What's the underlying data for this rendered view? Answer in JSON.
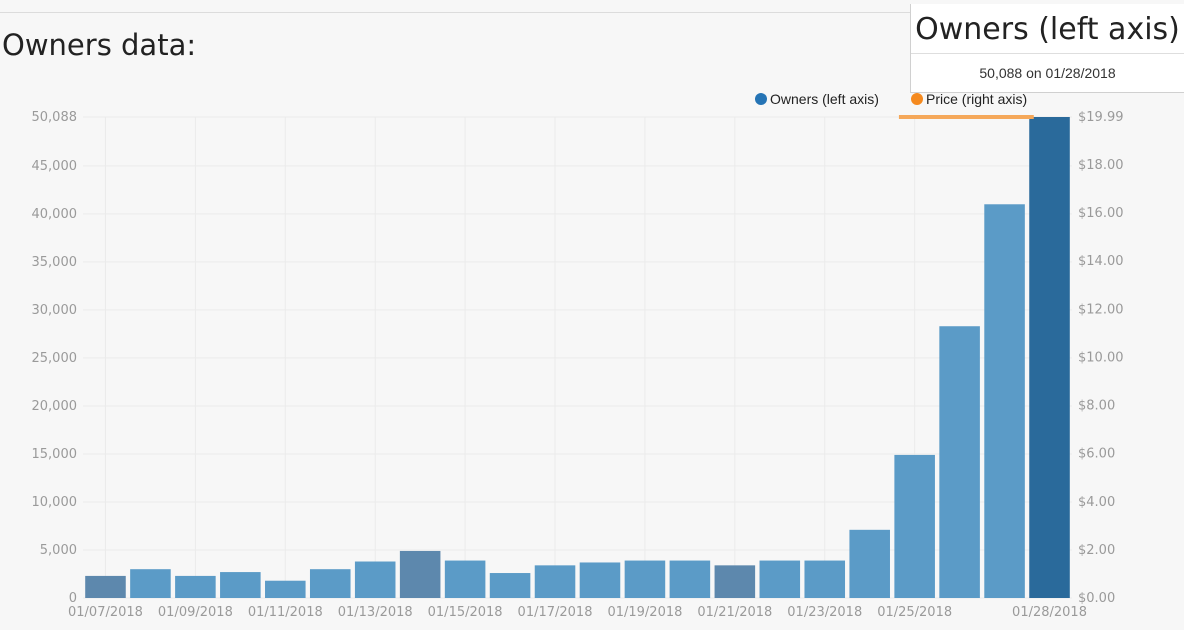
{
  "page": {
    "title": "Owners data:"
  },
  "tooltip": {
    "title": "Owners (left axis)",
    "value": "50,088 on 01/28/2018"
  },
  "colors": {
    "owners_bar": "#5b9bc7",
    "owners_bar_dark": "#5d88ad",
    "owners_bar_highlight": "#2a6a9b",
    "owners_legend": "#2574b5",
    "price_legend": "#f58a1f",
    "price_line": "#f5a85a",
    "grid": "#ebebeb"
  },
  "chart_data": {
    "type": "bar",
    "categories": [
      "01/07/2018",
      "01/08/2018",
      "01/09/2018",
      "01/10/2018",
      "01/11/2018",
      "01/12/2018",
      "01/13/2018",
      "01/14/2018",
      "01/15/2018",
      "01/16/2018",
      "01/17/2018",
      "01/18/2018",
      "01/19/2018",
      "01/20/2018",
      "01/21/2018",
      "01/22/2018",
      "01/23/2018",
      "01/24/2018",
      "01/25/2018",
      "01/26/2018",
      "01/27/2018",
      "01/28/2018"
    ],
    "series": [
      {
        "name": "Owners (left axis)",
        "axis": "left",
        "values": [
          2300,
          3000,
          2300,
          2700,
          1800,
          3000,
          3800,
          4900,
          3900,
          2600,
          3400,
          3700,
          3900,
          3900,
          3400,
          3900,
          3900,
          7100,
          14900,
          28300,
          41000,
          50088
        ],
        "darker_bars": [
          "01/07/2018",
          "01/14/2018",
          "01/21/2018"
        ],
        "highlighted": "01/28/2018"
      },
      {
        "name": "Price (right axis)",
        "axis": "right",
        "x": [
          "01/25/2018",
          "01/26/2018",
          "01/27/2018",
          "01/28/2018"
        ],
        "values": [
          19.99,
          19.99,
          19.99,
          19.99
        ]
      }
    ],
    "x_tick_labels": [
      "01/07/2018",
      "01/09/2018",
      "01/11/2018",
      "01/13/2018",
      "01/15/2018",
      "01/17/2018",
      "01/19/2018",
      "01/21/2018",
      "01/23/2018",
      "01/25/2018",
      "01/28/2018"
    ],
    "y_left": {
      "ylim": [
        0,
        50088
      ],
      "ticks": [
        0,
        5000,
        10000,
        15000,
        20000,
        25000,
        30000,
        35000,
        40000,
        45000,
        50088
      ],
      "tick_labels": [
        "0",
        "5,000",
        "10,000",
        "15,000",
        "20,000",
        "25,000",
        "30,000",
        "35,000",
        "40,000",
        "45,000",
        "50,088"
      ]
    },
    "y_right": {
      "ylim": [
        0,
        19.99
      ],
      "ticks": [
        0,
        2,
        4,
        6,
        8,
        10,
        12,
        14,
        16,
        18,
        19.99
      ],
      "tick_labels": [
        "$0.00",
        "$2.00",
        "$4.00",
        "$6.00",
        "$8.00",
        "$10.00",
        "$12.00",
        "$14.00",
        "$16.00",
        "$18.00",
        "$19.99"
      ]
    },
    "legend": {
      "position": "top-right",
      "items": [
        "Owners (left axis)",
        "Price (right axis)"
      ]
    },
    "grid": true
  }
}
